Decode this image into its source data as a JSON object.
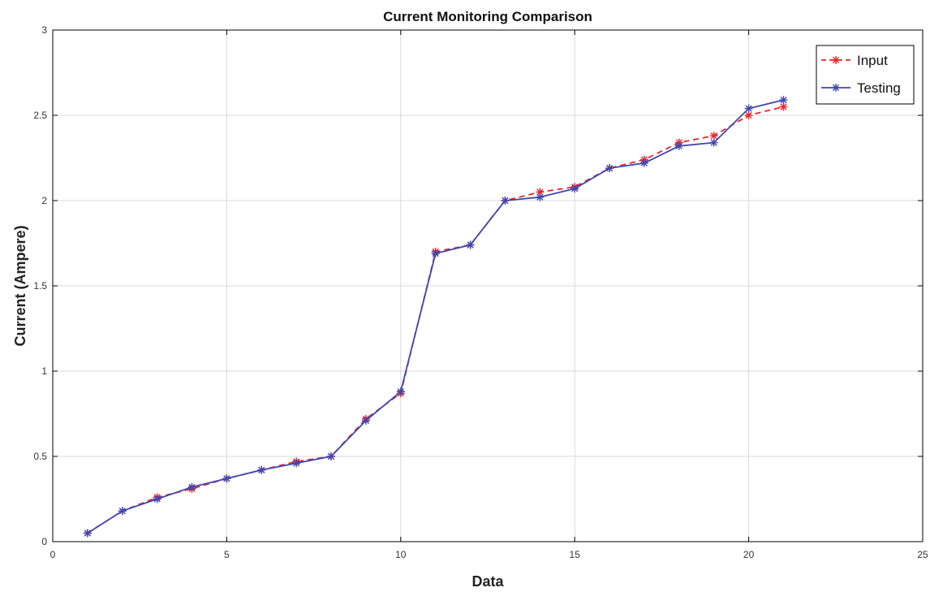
{
  "chart_data": {
    "type": "line",
    "title": "Current Monitoring Comparison",
    "xlabel": "Data",
    "ylabel": "Current (Ampere)",
    "xlim": [
      0,
      25
    ],
    "ylim": [
      0,
      3
    ],
    "xticks": [
      0,
      5,
      10,
      15,
      20,
      25
    ],
    "yticks": [
      0,
      0.5,
      1,
      1.5,
      2,
      2.5,
      3
    ],
    "xtick_labels": [
      "0",
      "5",
      "10",
      "15",
      "20",
      "25"
    ],
    "ytick_labels": [
      "0",
      "0.5",
      "1",
      "1.5",
      "2",
      "2.5",
      "3"
    ],
    "grid": true,
    "legend_position": "top-right",
    "x": [
      1,
      2,
      3,
      4,
      5,
      6,
      7,
      8,
      9,
      10,
      11,
      12,
      13,
      14,
      15,
      16,
      17,
      18,
      19,
      20,
      21
    ],
    "series": [
      {
        "name": "Input",
        "color": "#e8262b",
        "line_style": "dashed",
        "marker": "asterisk",
        "values": [
          0.05,
          0.18,
          0.26,
          0.31,
          0.37,
          0.42,
          0.47,
          0.5,
          0.72,
          0.87,
          1.7,
          1.74,
          2.0,
          2.05,
          2.08,
          2.19,
          2.24,
          2.34,
          2.38,
          2.5,
          2.55
        ]
      },
      {
        "name": "Testing",
        "color": "#3f47b0",
        "line_style": "solid",
        "marker": "asterisk",
        "values": [
          0.05,
          0.18,
          0.25,
          0.32,
          0.37,
          0.42,
          0.46,
          0.5,
          0.71,
          0.88,
          1.69,
          1.74,
          2.0,
          2.02,
          2.07,
          2.19,
          2.22,
          2.32,
          2.34,
          2.54,
          2.59
        ]
      }
    ]
  }
}
